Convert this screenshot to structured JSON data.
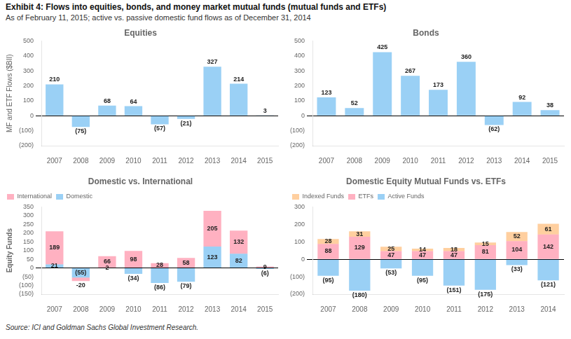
{
  "title": "Exhibit 4: Flows into equities, bonds, and money market mutual funds (mutual funds and ETFs)",
  "subtitle": "As of February 11, 2015; active vs. passive domestic fund flows as of December 31, 2014",
  "annotations": [
    "Source: ICI and Goldman Sachs Global Investment Research."
  ],
  "chart_data": [
    {
      "type": "bar",
      "title": "Equities",
      "ylabel": "MF and ETF Flows ($BII)",
      "categories": [
        "2007",
        "2008",
        "2009",
        "2010",
        "2011",
        "2012",
        "2013",
        "2014",
        "2015"
      ],
      "values": [
        210,
        -75,
        68,
        64,
        -57,
        -21,
        327,
        214,
        3
      ],
      "value_labels": [
        "210",
        "(75)",
        "68",
        "64",
        "(57)",
        "(21)",
        "327",
        "214",
        "3"
      ],
      "ylim": [
        -200,
        500
      ],
      "yticks": [
        {
          "value": -200,
          "label": "(200)"
        },
        {
          "value": -100,
          "label": "(100)"
        },
        0,
        100,
        200,
        300,
        400,
        500
      ],
      "grid": false,
      "data_labels": true
    },
    {
      "type": "bar",
      "title": "Bonds",
      "categories": [
        "2007",
        "2008",
        "2009",
        "2010",
        "2011",
        "2012",
        "2013",
        "2014",
        "2015"
      ],
      "values": [
        123,
        52,
        425,
        267,
        173,
        360,
        -62,
        92,
        38
      ],
      "value_labels": [
        "123",
        "52",
        "425",
        "267",
        "173",
        "360",
        "(62)",
        "92",
        "38"
      ],
      "ylim": [
        -200,
        500
      ],
      "yticks": [
        {
          "value": -200,
          "label": "(200)"
        },
        {
          "value": -100,
          "label": "(100)"
        },
        0,
        100,
        200,
        300,
        400,
        500
      ],
      "grid": false,
      "data_labels": true
    },
    {
      "type": "bar",
      "title": "Domestic vs. International",
      "ylabel": "Equity Funds",
      "categories": [
        "2007",
        "2008",
        "2009",
        "2010",
        "2011",
        "2012",
        "2013",
        "2014",
        "2015"
      ],
      "series": [
        {
          "name": "Domestic",
          "values": [
            21,
            -55,
            2,
            -34,
            -86,
            -79,
            123,
            82,
            -6
          ],
          "value_labels": [
            "21",
            "(55)",
            "2",
            "(34)",
            "(86)",
            "(79)",
            "123",
            "82",
            "(6)"
          ]
        },
        {
          "name": "International",
          "values": [
            189,
            -20,
            66,
            98,
            28,
            58,
            205,
            132,
            9
          ]
        }
      ],
      "stacked": true,
      "ylim": [
        -150,
        350
      ],
      "yticks": [
        {
          "value": -150,
          "label": "(150)"
        },
        {
          "value": -100,
          "label": "(100)"
        },
        {
          "value": -50,
          "label": "(50)"
        },
        0,
        50,
        100,
        150,
        200,
        250,
        300,
        350
      ],
      "grid": false,
      "legend": "upper left",
      "data_labels": true
    },
    {
      "type": "bar",
      "title": "Domestic Equity Mutual Funds vs. ETFs",
      "categories": [
        "2007",
        "2008",
        "2009",
        "2010",
        "2011",
        "2012",
        "2013",
        "2014"
      ],
      "series": [
        {
          "name": "Active Funds",
          "values": [
            -95,
            -180,
            -53,
            -95,
            -151,
            -175,
            -33,
            -121
          ],
          "value_labels": [
            "(95)",
            "(180)",
            "(53)",
            "(95)",
            "(151)",
            "(175)",
            "(33)",
            "(121)"
          ]
        },
        {
          "name": "ETFs",
          "values": [
            88,
            129,
            47,
            47,
            47,
            81,
            104,
            142
          ]
        },
        {
          "name": "Indexed Funds",
          "values": [
            28,
            31,
            25,
            14,
            18,
            15,
            52,
            61
          ]
        }
      ],
      "stacked": true,
      "ylim": [
        -200,
        300
      ],
      "yticks": [
        {
          "value": -200,
          "label": "(200)"
        },
        {
          "value": -100,
          "label": "(100)"
        },
        0,
        100,
        200,
        300
      ],
      "grid": false,
      "legend": "upper left",
      "data_labels": true
    }
  ]
}
